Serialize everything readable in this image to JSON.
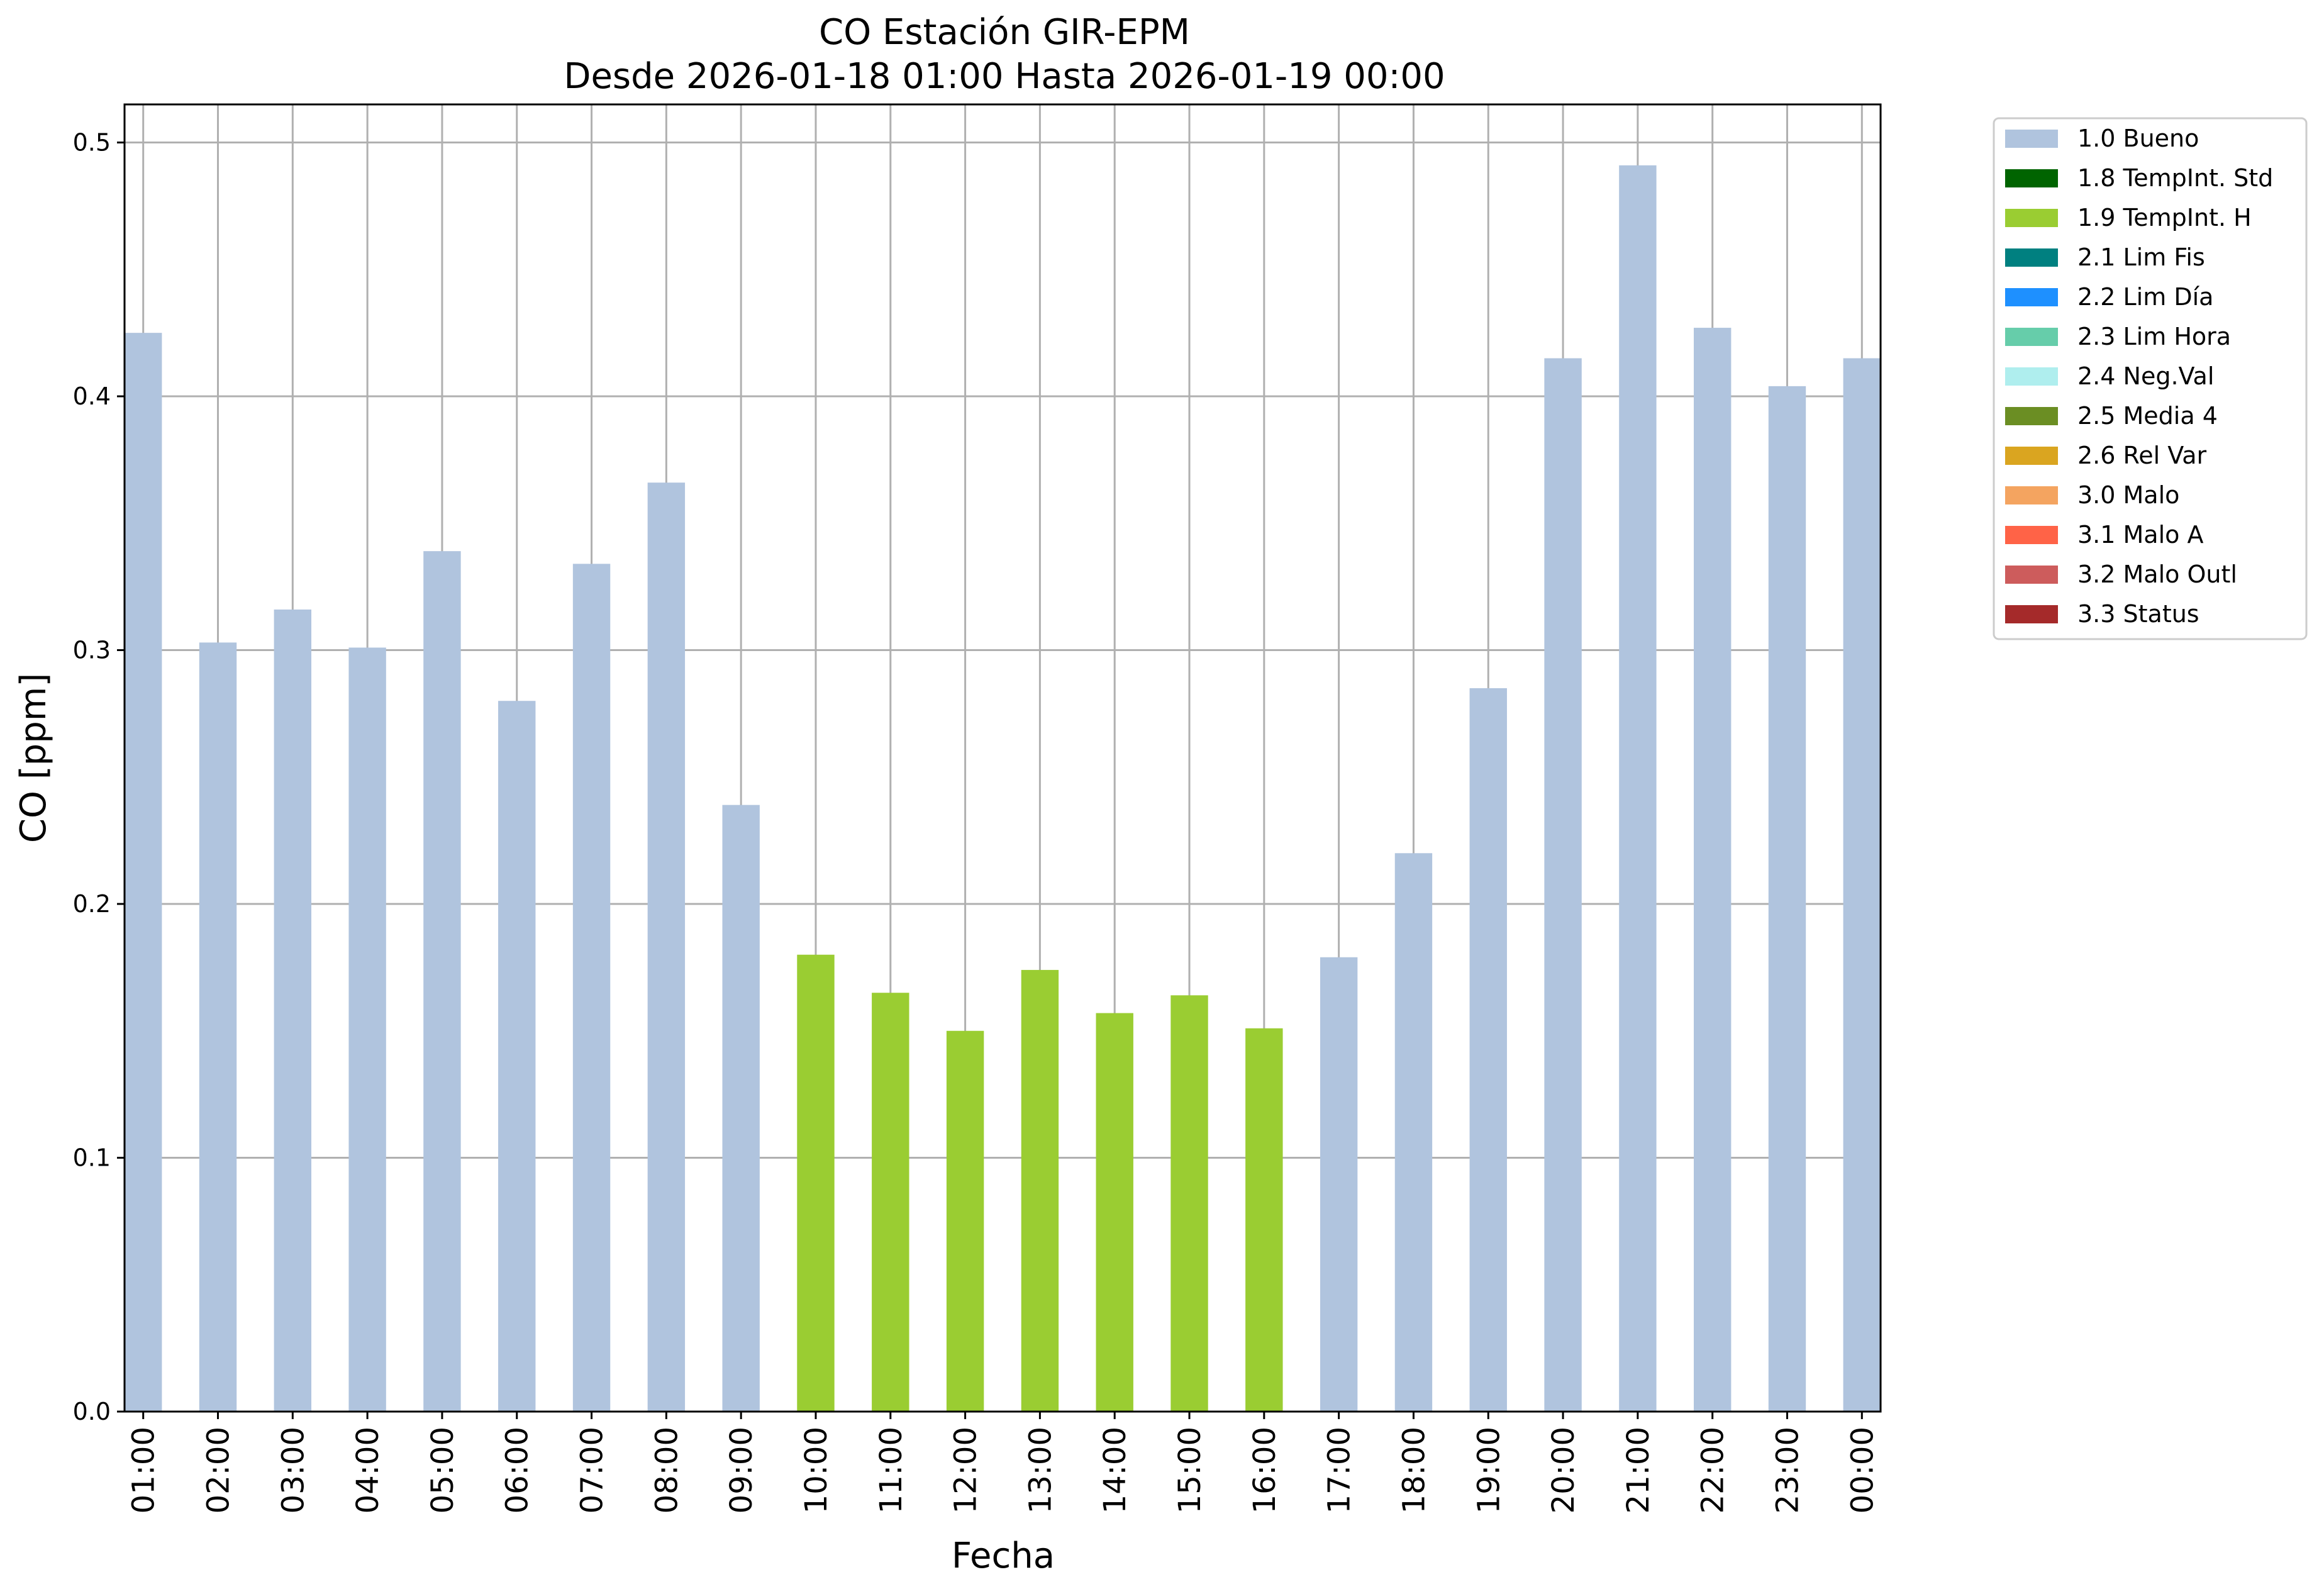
{
  "chart_data": {
    "type": "bar",
    "title": "CO Estación GIR-EPM",
    "subtitle": "Desde 2026-01-18 01:00 Hasta 2026-01-19 00:00",
    "xlabel": "Fecha",
    "ylabel": "CO [ppm]",
    "ylim": [
      0,
      0.515
    ],
    "yticks": [
      "0.0",
      "0.1",
      "0.2",
      "0.3",
      "0.4",
      "0.5"
    ],
    "ytick_values": [
      0,
      0.1,
      0.2,
      0.3,
      0.4,
      0.5
    ],
    "grid": true,
    "legend_position": "outside-right",
    "categories": [
      "01:00",
      "02:00",
      "03:00",
      "04:00",
      "05:00",
      "06:00",
      "07:00",
      "08:00",
      "09:00",
      "10:00",
      "11:00",
      "12:00",
      "13:00",
      "14:00",
      "15:00",
      "16:00",
      "17:00",
      "18:00",
      "19:00",
      "20:00",
      "21:00",
      "22:00",
      "23:00",
      "00:00"
    ],
    "values": [
      0.425,
      0.303,
      0.316,
      0.301,
      0.339,
      0.28,
      0.334,
      0.366,
      0.239,
      0.18,
      0.165,
      0.15,
      0.174,
      0.157,
      0.164,
      0.151,
      0.179,
      0.22,
      0.285,
      0.415,
      0.491,
      0.427,
      0.404,
      0.415
    ],
    "flags": [
      "1.0 Bueno",
      "1.0 Bueno",
      "1.0 Bueno",
      "1.0 Bueno",
      "1.0 Bueno",
      "1.0 Bueno",
      "1.0 Bueno",
      "1.0 Bueno",
      "1.0 Bueno",
      "1.9 TempInt. H",
      "1.9 TempInt. H",
      "1.9 TempInt. H",
      "1.9 TempInt. H",
      "1.9 TempInt. H",
      "1.9 TempInt. H",
      "1.9 TempInt. H",
      "1.0 Bueno",
      "1.0 Bueno",
      "1.0 Bueno",
      "1.0 Bueno",
      "1.0 Bueno",
      "1.0 Bueno",
      "1.0 Bueno",
      "1.0 Bueno"
    ],
    "legend": [
      {
        "label": "1.0 Bueno",
        "color": "#b0c4de"
      },
      {
        "label": "1.8 TempInt. Std",
        "color": "#006400"
      },
      {
        "label": "1.9 TempInt. H",
        "color": "#9acd32"
      },
      {
        "label": "2.1 Lim Fis",
        "color": "#008080"
      },
      {
        "label": "2.2 Lim Día",
        "color": "#1e90ff"
      },
      {
        "label": "2.3 Lim Hora",
        "color": "#66cdaa"
      },
      {
        "label": "2.4 Neg.Val",
        "color": "#afeeee"
      },
      {
        "label": "2.5 Media 4",
        "color": "#6b8e23"
      },
      {
        "label": "2.6 Rel Var",
        "color": "#daa520"
      },
      {
        "label": "3.0 Malo",
        "color": "#f4a460"
      },
      {
        "label": "3.1 Malo A",
        "color": "#ff6347"
      },
      {
        "label": "3.2 Malo Outl",
        "color": "#cd5c5c"
      },
      {
        "label": "3.3 Status",
        "color": "#a52a2a"
      }
    ]
  }
}
